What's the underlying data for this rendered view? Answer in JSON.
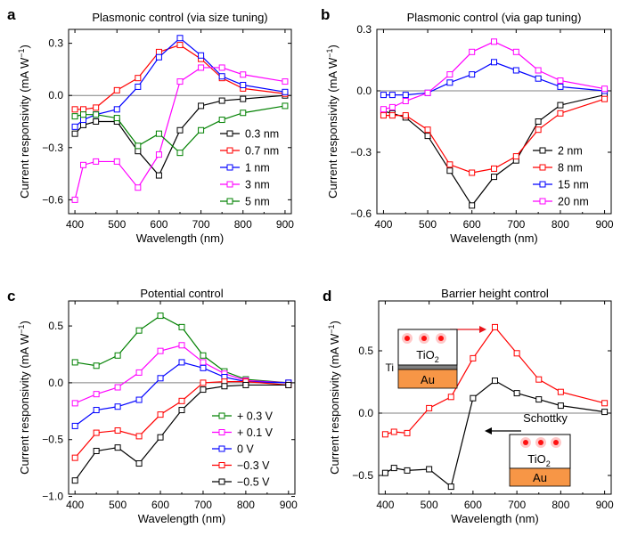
{
  "chart_data": [
    {
      "panel": "a",
      "type": "line",
      "title": "Plasmonic control (via size tuning)",
      "xlabel": "Wavelength (nm)",
      "ylabel": "Current responsivity (mA W",
      "ylabel_sup": "−1",
      "ylabel_close": ")",
      "xlim": [
        385,
        915
      ],
      "ylim": [
        -0.68,
        0.38
      ],
      "xticks": [
        400,
        500,
        600,
        700,
        800,
        900
      ],
      "yticks": [
        0.3,
        0.0,
        -0.3,
        -0.6
      ],
      "ytick_labels": [
        "0.3",
        "0.0",
        "−0.3",
        "−0.6"
      ],
      "legend_position": "lower-right",
      "x": [
        400,
        420,
        450,
        500,
        550,
        600,
        650,
        700,
        750,
        800,
        900
      ],
      "series": [
        {
          "name": "0.3 nm",
          "color": "#000000",
          "values": [
            -0.22,
            -0.17,
            -0.15,
            -0.15,
            -0.32,
            -0.46,
            -0.2,
            -0.06,
            -0.03,
            -0.02,
            0.0
          ]
        },
        {
          "name": "0.7 nm",
          "color": "#ff0000",
          "values": [
            -0.08,
            -0.08,
            -0.07,
            0.03,
            0.1,
            0.25,
            0.29,
            0.21,
            0.1,
            0.04,
            0.01
          ]
        },
        {
          "name": "1 nm",
          "color": "#0000ff",
          "values": [
            -0.18,
            -0.14,
            -0.11,
            -0.08,
            0.05,
            0.22,
            0.33,
            0.23,
            0.11,
            0.06,
            0.02
          ]
        },
        {
          "name": "3 nm",
          "color": "#ff00ff",
          "values": [
            -0.6,
            -0.4,
            -0.38,
            -0.38,
            -0.53,
            -0.34,
            0.08,
            0.16,
            0.16,
            0.12,
            0.08
          ]
        },
        {
          "name": "5 nm",
          "color": "#008000",
          "values": [
            -0.12,
            -0.11,
            -0.11,
            -0.13,
            -0.29,
            -0.22,
            -0.33,
            -0.2,
            -0.14,
            -0.1,
            -0.06
          ]
        }
      ]
    },
    {
      "panel": "b",
      "type": "line",
      "title": "Plasmonic control (via gap tuning)",
      "xlabel": "Wavelength (nm)",
      "ylabel": "Current responsivity (mA W",
      "ylabel_sup": "−1",
      "ylabel_close": ")",
      "xlim": [
        385,
        915
      ],
      "ylim": [
        -0.6,
        0.3
      ],
      "xticks": [
        400,
        500,
        600,
        700,
        800,
        900
      ],
      "yticks": [
        0.3,
        0.0,
        -0.3,
        -0.6
      ],
      "ytick_labels": [
        "0.3",
        "0.0",
        "−0.3",
        "−0.6"
      ],
      "legend_position": "lower-right",
      "x": [
        400,
        420,
        450,
        500,
        550,
        600,
        650,
        700,
        750,
        800,
        900
      ],
      "series": [
        {
          "name": "2 nm",
          "color": "#000000",
          "values": [
            -0.1,
            -0.11,
            -0.13,
            -0.22,
            -0.39,
            -0.56,
            -0.42,
            -0.34,
            -0.15,
            -0.07,
            -0.02
          ]
        },
        {
          "name": "8 nm",
          "color": "#ff0000",
          "values": [
            -0.12,
            -0.12,
            -0.12,
            -0.19,
            -0.36,
            -0.4,
            -0.38,
            -0.32,
            -0.19,
            -0.11,
            -0.04
          ]
        },
        {
          "name": "15 nm",
          "color": "#0000ff",
          "values": [
            -0.02,
            -0.02,
            -0.02,
            -0.01,
            0.04,
            0.08,
            0.14,
            0.1,
            0.06,
            0.02,
            0.0
          ]
        },
        {
          "name": "20 nm",
          "color": "#ff00ff",
          "values": [
            -0.09,
            -0.08,
            -0.05,
            -0.01,
            0.08,
            0.19,
            0.24,
            0.19,
            0.1,
            0.05,
            0.01
          ]
        }
      ]
    },
    {
      "panel": "c",
      "type": "line",
      "title": "Potential control",
      "xlabel": "Wavelength (nm)",
      "ylabel": "Current responsivity (mA W",
      "ylabel_sup": "−1",
      "ylabel_close": ")",
      "xlim": [
        385,
        915
      ],
      "ylim": [
        -0.98,
        0.72
      ],
      "xticks": [
        400,
        500,
        600,
        700,
        800,
        900
      ],
      "yticks": [
        0.5,
        0.0,
        -0.5,
        -1.0
      ],
      "ytick_labels": [
        "0.5",
        "0.0",
        "−0.5",
        "−1.0"
      ],
      "legend_position": "lower-right",
      "x": [
        400,
        450,
        500,
        550,
        600,
        650,
        700,
        750,
        800,
        900
      ],
      "series": [
        {
          "name": "+ 0.3 V",
          "color": "#008000",
          "values": [
            0.18,
            0.15,
            0.24,
            0.46,
            0.59,
            0.49,
            0.24,
            0.1,
            0.03,
            0.0
          ]
        },
        {
          "name": "+ 0.1 V",
          "color": "#ff00ff",
          "values": [
            -0.18,
            -0.1,
            -0.04,
            0.09,
            0.28,
            0.33,
            0.18,
            0.08,
            0.02,
            0.0
          ]
        },
        {
          "name": "0 V",
          "color": "#0000ff",
          "values": [
            -0.38,
            -0.24,
            -0.21,
            -0.15,
            0.04,
            0.18,
            0.13,
            0.05,
            0.01,
            0.0
          ]
        },
        {
          "name": "−0.3 V",
          "color": "#ff0000",
          "values": [
            -0.66,
            -0.44,
            -0.42,
            -0.47,
            -0.28,
            -0.16,
            0.0,
            0.01,
            0.01,
            -0.02
          ]
        },
        {
          "name": "−0.5 V",
          "color": "#000000",
          "values": [
            -0.86,
            -0.6,
            -0.57,
            -0.71,
            -0.48,
            -0.24,
            -0.06,
            -0.03,
            -0.02,
            -0.02
          ]
        }
      ]
    },
    {
      "panel": "d",
      "type": "line",
      "title": "Barrier height control",
      "xlabel": "Wavelength (nm)",
      "ylabel": "Current responsivity (mA W",
      "ylabel_sup": "−1",
      "ylabel_close": ")",
      "xlim": [
        385,
        915
      ],
      "ylim": [
        -0.65,
        0.9
      ],
      "xticks": [
        400,
        500,
        600,
        700,
        800,
        900
      ],
      "yticks": [
        0.5,
        0.0,
        -0.5
      ],
      "ytick_labels": [
        "0.5",
        "0.0",
        "−0.5"
      ],
      "x": [
        400,
        420,
        450,
        500,
        550,
        600,
        650,
        700,
        750,
        800,
        900
      ],
      "series": [
        {
          "name": "Ohmic",
          "color": "#ff0000",
          "values": [
            -0.17,
            -0.15,
            -0.16,
            0.04,
            0.13,
            0.44,
            0.69,
            0.48,
            0.27,
            0.17,
            0.08
          ]
        },
        {
          "name": "Schottky",
          "color": "#000000",
          "values": [
            -0.48,
            -0.44,
            -0.46,
            -0.45,
            -0.59,
            0.12,
            0.26,
            0.16,
            0.11,
            0.06,
            0.01
          ]
        }
      ],
      "annotations": {
        "ohmic_label": "Ohmic",
        "schottky_label": "Schottky",
        "ohmic_inset": {
          "top_layer": "TiO",
          "top_layer_sub": "2",
          "interlayer": "Ti",
          "bottom_layer": "Au"
        },
        "schottky_inset": {
          "top_layer": "TiO",
          "top_layer_sub": "2",
          "bottom_layer": "Au"
        }
      }
    }
  ],
  "panel_labels": [
    "a",
    "b",
    "c",
    "d"
  ],
  "colors": {
    "axis": "#000000",
    "zero_line": "#808080",
    "au": "#f79646",
    "ti": "#7f7f7f",
    "dot_core": "#ff1010",
    "dot_halo": "#ffc8c8"
  }
}
